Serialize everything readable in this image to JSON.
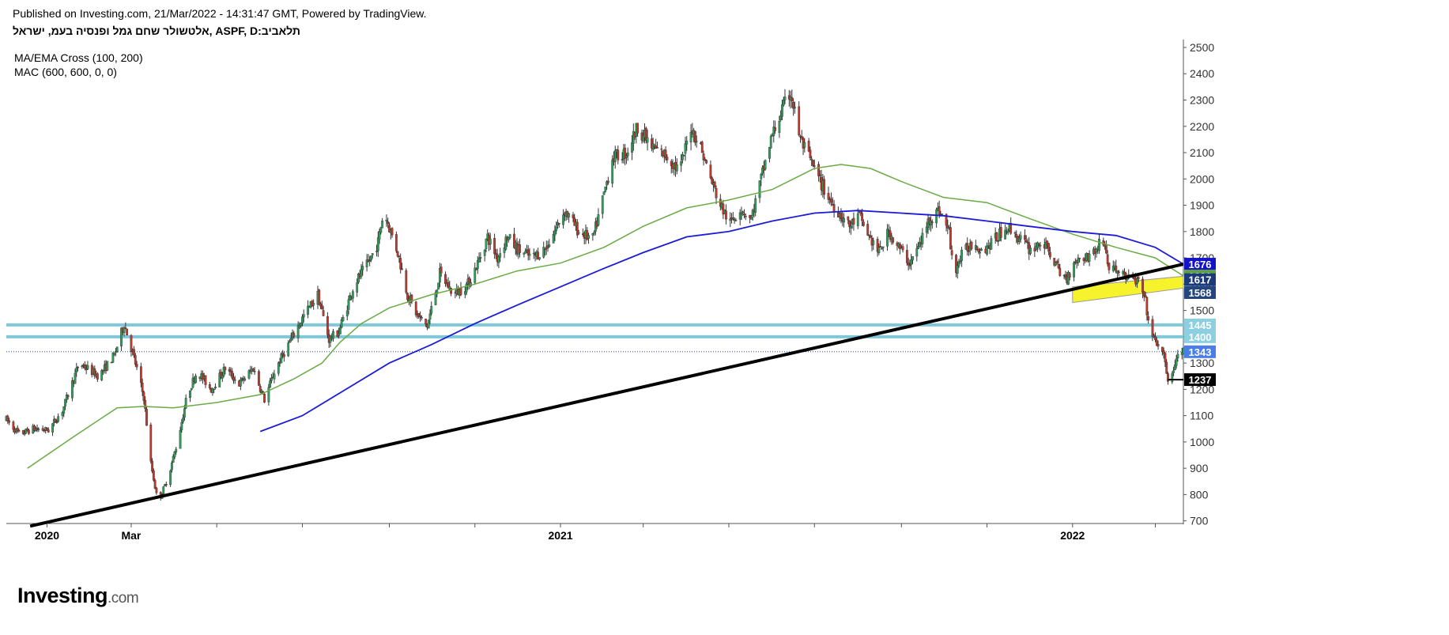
{
  "header": {
    "published": "Published on Investing.com, 21/Mar/2022 - 14:31:47 GMT, Powered by TradingView.",
    "symbol": "תלאביב:ASPF, D ,אלטשולר שחם גמל ופנסיה בעמ, ישראל"
  },
  "indicators": [
    "MA/EMA Cross (100, 200)",
    "MAC (600, 600, 0, 0)"
  ],
  "logo": {
    "brand": "Investing",
    "domain": ".com"
  },
  "colors": {
    "up": "#2e9e5b",
    "down": "#c0392b",
    "ma_green": "#6aaa44",
    "ma_blue": "#1c1cd6",
    "support_lines": "#7fc8d9",
    "trendline": "#000000",
    "channel_fill": "#f6f22c",
    "current_line": "#2a4fd6"
  },
  "chart_data": {
    "type": "candlestick",
    "title": "",
    "xlabel": "",
    "ylabel": "",
    "xlim": [
      "2019-12-03",
      "2022-03-21"
    ],
    "ylim": [
      690,
      2530
    ],
    "y_scale": "linear",
    "y_ticks": [
      700,
      800,
      900,
      1000,
      1100,
      1200,
      1300,
      1400,
      1500,
      1600,
      1700,
      1800,
      1900,
      2000,
      2100,
      2200,
      2300,
      2400,
      2500
    ],
    "x_ticks": [
      {
        "date": "2020-01-01",
        "label": "2020",
        "bold": true
      },
      {
        "date": "2020-03-01",
        "label": "Mar",
        "bold": false
      },
      {
        "date": "2020-05-01",
        "label": "",
        "bold": false
      },
      {
        "date": "2020-07-01",
        "label": "",
        "bold": false
      },
      {
        "date": "2020-09-01",
        "label": "",
        "bold": false
      },
      {
        "date": "2020-11-01",
        "label": "",
        "bold": false
      },
      {
        "date": "2021-01-01",
        "label": "2021",
        "bold": true
      },
      {
        "date": "2021-03-01",
        "label": "",
        "bold": false
      },
      {
        "date": "2021-05-01",
        "label": "",
        "bold": false
      },
      {
        "date": "2021-07-01",
        "label": "",
        "bold": false
      },
      {
        "date": "2021-09-01",
        "label": "",
        "bold": false
      },
      {
        "date": "2021-11-01",
        "label": "",
        "bold": false
      },
      {
        "date": "2022-01-01",
        "label": "2022",
        "bold": true
      },
      {
        "date": "2022-03-01",
        "label": "",
        "bold": false
      }
    ],
    "price_path": [
      [
        "2019-12-03",
        1085
      ],
      [
        "2019-12-12",
        1030
      ],
      [
        "2019-12-22",
        1050
      ],
      [
        "2020-01-02",
        1045
      ],
      [
        "2020-01-12",
        1120
      ],
      [
        "2020-01-24",
        1300
      ],
      [
        "2020-02-07",
        1250
      ],
      [
        "2020-02-18",
        1330
      ],
      [
        "2020-02-25",
        1450
      ],
      [
        "2020-03-03",
        1320
      ],
      [
        "2020-03-10",
        1170
      ],
      [
        "2020-03-15",
        920
      ],
      [
        "2020-03-20",
        770
      ],
      [
        "2020-03-27",
        860
      ],
      [
        "2020-04-03",
        1000
      ],
      [
        "2020-04-10",
        1180
      ],
      [
        "2020-04-17",
        1270
      ],
      [
        "2020-04-27",
        1200
      ],
      [
        "2020-05-07",
        1280
      ],
      [
        "2020-05-17",
        1220
      ],
      [
        "2020-05-27",
        1280
      ],
      [
        "2020-06-04",
        1160
      ],
      [
        "2020-06-12",
        1280
      ],
      [
        "2020-06-22",
        1380
      ],
      [
        "2020-07-02",
        1480
      ],
      [
        "2020-07-12",
        1560
      ],
      [
        "2020-07-20",
        1390
      ],
      [
        "2020-07-27",
        1420
      ],
      [
        "2020-08-07",
        1600
      ],
      [
        "2020-08-17",
        1680
      ],
      [
        "2020-08-24",
        1760
      ],
      [
        "2020-08-28",
        1880
      ],
      [
        "2020-09-07",
        1720
      ],
      [
        "2020-09-14",
        1560
      ],
      [
        "2020-09-21",
        1480
      ],
      [
        "2020-09-28",
        1440
      ],
      [
        "2020-10-07",
        1640
      ],
      [
        "2020-10-17",
        1560
      ],
      [
        "2020-10-27",
        1600
      ],
      [
        "2020-11-03",
        1680
      ],
      [
        "2020-11-10",
        1780
      ],
      [
        "2020-11-17",
        1700
      ],
      [
        "2020-11-24",
        1780
      ],
      [
        "2020-12-02",
        1730
      ],
      [
        "2020-12-12",
        1700
      ],
      [
        "2020-12-22",
        1740
      ],
      [
        "2021-01-04",
        1880
      ],
      [
        "2021-01-14",
        1800
      ],
      [
        "2021-01-24",
        1770
      ],
      [
        "2021-01-31",
        1920
      ],
      [
        "2021-02-07",
        2080
      ],
      [
        "2021-02-17",
        2100
      ],
      [
        "2021-02-25",
        2200
      ],
      [
        "2021-03-07",
        2120
      ],
      [
        "2021-03-17",
        2090
      ],
      [
        "2021-03-27",
        2030
      ],
      [
        "2021-04-04",
        2200
      ],
      [
        "2021-04-11",
        2120
      ],
      [
        "2021-04-18",
        2000
      ],
      [
        "2021-04-25",
        1900
      ],
      [
        "2021-05-02",
        1830
      ],
      [
        "2021-05-09",
        1890
      ],
      [
        "2021-05-17",
        1850
      ],
      [
        "2021-05-24",
        2000
      ],
      [
        "2021-05-31",
        2150
      ],
      [
        "2021-06-07",
        2250
      ],
      [
        "2021-06-14",
        2330
      ],
      [
        "2021-06-21",
        2150
      ],
      [
        "2021-06-28",
        2070
      ],
      [
        "2021-07-05",
        1990
      ],
      [
        "2021-07-12",
        1920
      ],
      [
        "2021-07-19",
        1870
      ],
      [
        "2021-07-26",
        1820
      ],
      [
        "2021-08-02",
        1860
      ],
      [
        "2021-08-09",
        1780
      ],
      [
        "2021-08-16",
        1720
      ],
      [
        "2021-08-23",
        1800
      ],
      [
        "2021-08-30",
        1740
      ],
      [
        "2021-09-07",
        1680
      ],
      [
        "2021-09-14",
        1750
      ],
      [
        "2021-09-21",
        1850
      ],
      [
        "2021-09-28",
        1880
      ],
      [
        "2021-10-05",
        1800
      ],
      [
        "2021-10-08",
        1640
      ],
      [
        "2021-10-15",
        1720
      ],
      [
        "2021-10-22",
        1760
      ],
      [
        "2021-10-29",
        1730
      ],
      [
        "2021-11-05",
        1760
      ],
      [
        "2021-11-15",
        1820
      ],
      [
        "2021-11-25",
        1770
      ],
      [
        "2021-12-02",
        1730
      ],
      [
        "2021-12-09",
        1760
      ],
      [
        "2021-12-16",
        1720
      ],
      [
        "2021-12-23",
        1640
      ],
      [
        "2021-12-28",
        1620
      ],
      [
        "2022-01-02",
        1690
      ],
      [
        "2022-01-09",
        1700
      ],
      [
        "2022-01-16",
        1720
      ],
      [
        "2022-01-23",
        1770
      ],
      [
        "2022-01-27",
        1660
      ],
      [
        "2022-02-03",
        1650
      ],
      [
        "2022-02-10",
        1620
      ],
      [
        "2022-02-17",
        1610
      ],
      [
        "2022-02-22",
        1530
      ],
      [
        "2022-02-26",
        1400
      ],
      [
        "2022-03-02",
        1380
      ],
      [
        "2022-03-07",
        1320
      ],
      [
        "2022-03-10",
        1240
      ],
      [
        "2022-03-14",
        1270
      ],
      [
        "2022-03-18",
        1350
      ],
      [
        "2022-03-21",
        1343
      ]
    ],
    "series": [
      {
        "name": "MA 100",
        "color": "#6aaa44",
        "points": [
          [
            "2019-12-18",
            900
          ],
          [
            "2020-01-20",
            1020
          ],
          [
            "2020-02-20",
            1130
          ],
          [
            "2020-03-10",
            1135
          ],
          [
            "2020-03-31",
            1130
          ],
          [
            "2020-05-01",
            1150
          ],
          [
            "2020-06-01",
            1180
          ],
          [
            "2020-06-25",
            1240
          ],
          [
            "2020-07-15",
            1300
          ],
          [
            "2020-07-28",
            1380
          ],
          [
            "2020-08-12",
            1450
          ],
          [
            "2020-09-01",
            1510
          ],
          [
            "2020-10-01",
            1560
          ],
          [
            "2020-11-01",
            1600
          ],
          [
            "2020-12-01",
            1650
          ],
          [
            "2021-01-01",
            1680
          ],
          [
            "2021-02-01",
            1740
          ],
          [
            "2021-03-01",
            1820
          ],
          [
            "2021-04-01",
            1890
          ],
          [
            "2021-05-01",
            1920
          ],
          [
            "2021-06-01",
            1960
          ],
          [
            "2021-07-01",
            2040
          ],
          [
            "2021-07-20",
            2055
          ],
          [
            "2021-08-10",
            2040
          ],
          [
            "2021-09-01",
            1990
          ],
          [
            "2021-10-01",
            1930
          ],
          [
            "2021-11-01",
            1910
          ],
          [
            "2021-12-01",
            1850
          ],
          [
            "2022-01-01",
            1790
          ],
          [
            "2022-02-01",
            1740
          ],
          [
            "2022-03-01",
            1700
          ],
          [
            "2022-03-21",
            1631
          ]
        ]
      },
      {
        "name": "EMA 200",
        "color": "#1c1cd6",
        "points": [
          [
            "2020-06-01",
            1040
          ],
          [
            "2020-07-01",
            1100
          ],
          [
            "2020-08-01",
            1200
          ],
          [
            "2020-09-01",
            1300
          ],
          [
            "2020-10-01",
            1370
          ],
          [
            "2020-11-01",
            1450
          ],
          [
            "2020-12-01",
            1520
          ],
          [
            "2021-01-01",
            1590
          ],
          [
            "2021-02-01",
            1660
          ],
          [
            "2021-03-01",
            1720
          ],
          [
            "2021-04-01",
            1780
          ],
          [
            "2021-05-01",
            1800
          ],
          [
            "2021-06-01",
            1840
          ],
          [
            "2021-07-01",
            1870
          ],
          [
            "2021-08-01",
            1880
          ],
          [
            "2021-09-01",
            1870
          ],
          [
            "2021-10-01",
            1860
          ],
          [
            "2021-11-01",
            1840
          ],
          [
            "2021-12-01",
            1820
          ],
          [
            "2022-01-01",
            1800
          ],
          [
            "2022-02-01",
            1785
          ],
          [
            "2022-03-01",
            1740
          ],
          [
            "2022-03-21",
            1676
          ]
        ]
      }
    ],
    "trendline": {
      "from": [
        "2019-12-20",
        680
      ],
      "to": [
        "2022-03-21",
        1676
      ]
    },
    "support_levels": [
      1445,
      1400
    ],
    "current_price": 1343,
    "channel": {
      "upper": {
        "from": [
          "2022-01-01",
          1590
        ],
        "to": [
          "2022-03-21",
          1630
        ]
      },
      "lower": {
        "from": [
          "2022-01-01",
          1530
        ],
        "to": [
          "2022-03-21",
          1585
        ]
      }
    },
    "low_marker": {
      "from": [
        "2022-03-10",
        1237
      ],
      "to": [
        "2022-03-21",
        1237
      ]
    },
    "price_badges": [
      {
        "label": "1676",
        "value": 1676,
        "color": "#1313c9"
      },
      {
        "label": "1631",
        "value": 1631,
        "color": "#5fa043"
      },
      {
        "label": "1617",
        "value": 1617,
        "color": "#1b3a7a"
      },
      {
        "label": "1568",
        "value": 1568,
        "color": "#23467e"
      },
      {
        "label": "1445",
        "value": 1445,
        "color": "#8ccfe0"
      },
      {
        "label": "1400",
        "value": 1400,
        "color": "#8ccfe0"
      },
      {
        "label": "1343",
        "value": 1343,
        "color": "#4a7de8"
      },
      {
        "label": "1237",
        "value": 1237,
        "color": "#000000"
      }
    ]
  }
}
